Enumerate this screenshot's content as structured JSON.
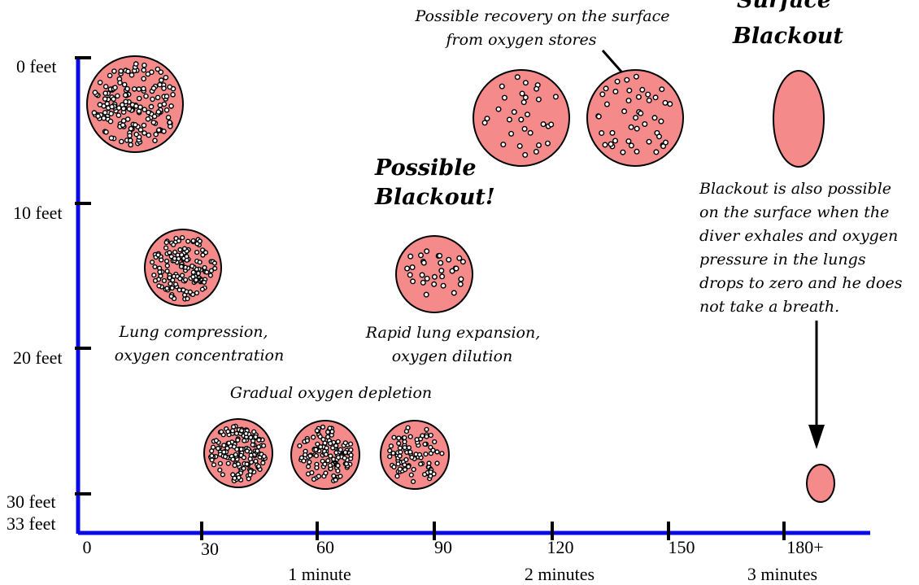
{
  "depth_labels": [
    "0 feet",
    "10 feet",
    "20 feet",
    "30 feet",
    "33 feet"
  ],
  "time_labels": [
    "0",
    "30",
    "60",
    "90",
    "120",
    "150",
    "180+"
  ],
  "minute_labels": [
    "1 minute",
    "2 minutes",
    "3 minutes"
  ],
  "annotations": {
    "top_cut": "Surface",
    "surface_blackout": "Blackout",
    "possible_blackout_1": "Possible",
    "possible_blackout_2": "Blackout!",
    "recovery_1": "Possible recovery on the surface",
    "recovery_2": "from oxygen stores",
    "compression_1": "Lung compression,",
    "compression_2": "oxygen concentration",
    "expansion_1": "Rapid lung expansion,",
    "expansion_2": "oxygen dilution",
    "depletion": "Gradual oxygen depletion",
    "surface_note": [
      "Blackout is also possible",
      "on the surface when the",
      "diver exhales and oxygen",
      "pressure in the lungs",
      "drops to zero and he does",
      "not take a breath."
    ]
  },
  "colors": {
    "axis": "#0a0ae6",
    "lung": "#f58a8a"
  }
}
